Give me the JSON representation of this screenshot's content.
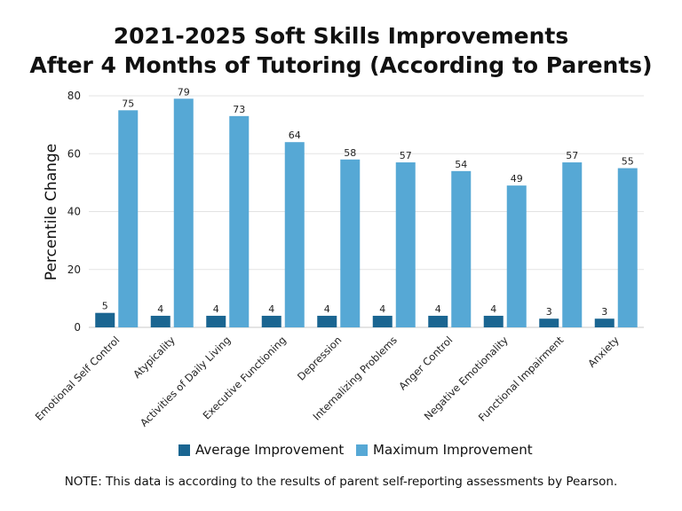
{
  "chart_data": {
    "type": "bar",
    "title_lines": [
      "2021-2025 Soft Skills Improvements",
      "After 4 Months of Tutoring (According to Parents)"
    ],
    "ylabel": "Percentile Change",
    "xlabel": "",
    "ylim": [
      0,
      80
    ],
    "yticks": [
      0,
      20,
      40,
      60,
      80
    ],
    "grid": true,
    "legend_position": "bottom",
    "categories": [
      "Emotional Self Control",
      "Atypicality",
      "Activities of Daily Living",
      "Executive Functioning",
      "Depression",
      "Internalizing Problems",
      "Anger Control",
      "Negative Emotionality",
      "Functional Impairment",
      "Anxiety"
    ],
    "series": [
      {
        "name": "Average Improvement",
        "color": "#1a6591",
        "values": [
          5,
          4,
          4,
          4,
          4,
          4,
          4,
          4,
          3,
          3
        ]
      },
      {
        "name": "Maximum Improvement",
        "color": "#56a8d5",
        "values": [
          75,
          79,
          73,
          64,
          58,
          57,
          54,
          49,
          57,
          55
        ]
      }
    ],
    "note": "NOTE: This data is according to the results of parent self-reporting assessments by Pearson."
  }
}
